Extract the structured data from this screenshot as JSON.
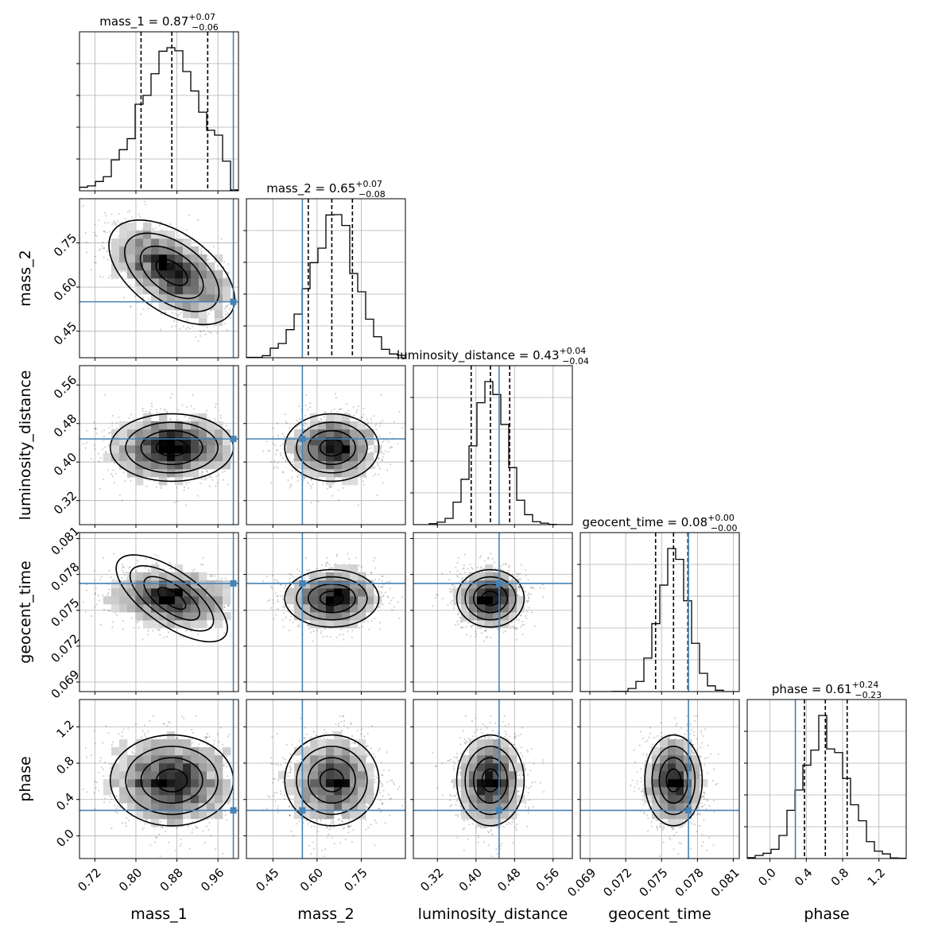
{
  "chart_data": {
    "type": "corner",
    "parameters": [
      "mass_1",
      "mass_2",
      "luminosity_distance",
      "geocent_time",
      "phase"
    ],
    "axis_labels": [
      "mass_1",
      "mass_2",
      "luminosity_distance",
      "geocent_time",
      "phase"
    ],
    "ranges": [
      [
        0.69,
        1.0
      ],
      [
        0.36,
        0.9
      ],
      [
        0.27,
        0.6
      ],
      [
        0.0682,
        0.0815
      ],
      [
        -0.25,
        1.5
      ]
    ],
    "ticks": [
      [
        "0.72",
        "0.80",
        "0.88",
        "0.96"
      ],
      [
        "0.45",
        "0.60",
        "0.75"
      ],
      [
        "0.32",
        "0.40",
        "0.48",
        "0.56"
      ],
      [
        "0.069",
        "0.072",
        "0.075",
        "0.078",
        "0.081"
      ],
      [
        "0.0",
        "0.4",
        "0.8",
        "1.2"
      ]
    ],
    "y_ticks": [
      [],
      [
        "0.45",
        "0.60",
        "0.75"
      ],
      [
        "0.32",
        "0.40",
        "0.48",
        "0.56"
      ],
      [
        "0.069",
        "0.072",
        "0.075",
        "0.078",
        "0.081"
      ],
      [
        "0.0",
        "0.4",
        "0.8",
        "1.2"
      ]
    ],
    "truths": [
      0.99,
      0.55,
      0.448,
      0.07725,
      0.28
    ],
    "median": [
      0.87,
      0.65,
      0.43,
      0.076,
      0.61
    ],
    "q16": [
      0.81,
      0.57,
      0.39,
      0.0745,
      0.38
    ],
    "q84": [
      0.94,
      0.72,
      0.47,
      0.0772,
      0.85
    ],
    "sigma": [
      0.06,
      0.08,
      0.035,
      0.0012,
      0.25
    ],
    "truncate_upper": [
      0.985,
      null,
      null,
      null,
      null
    ],
    "titles": [
      {
        "prefix": "mass_1 = 0.87",
        "sup": "+0.07",
        "sub": "−0.06"
      },
      {
        "prefix": "mass_2 = 0.65",
        "sup": "+0.07",
        "sub": "−0.08"
      },
      {
        "prefix": "luminosity_distance = 0.43",
        "sup": "+0.04",
        "sub": "−0.04"
      },
      {
        "prefix": "geocent_time = 0.08",
        "sup": "+0.00",
        "sub": "−0.00"
      },
      {
        "prefix": "phase = 0.61",
        "sup": "+0.24",
        "sub": "−0.23"
      }
    ],
    "truth_color": "#4682b4",
    "grid": true
  }
}
